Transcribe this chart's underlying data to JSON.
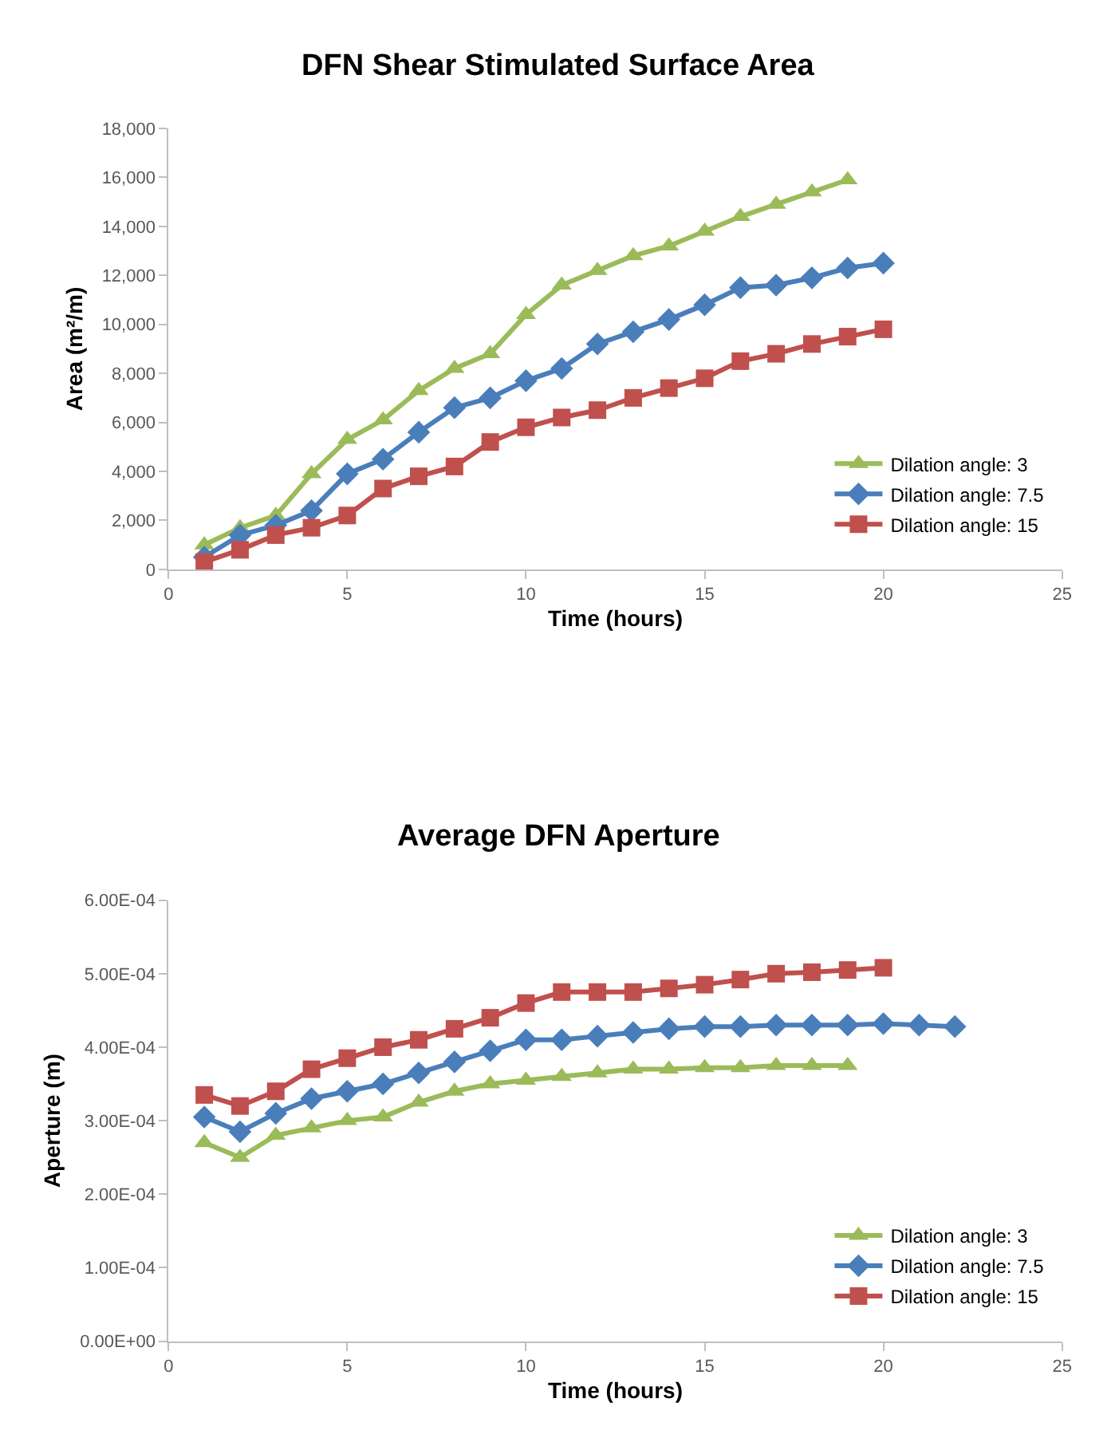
{
  "chart_data": [
    {
      "type": "line",
      "title": "DFN Shear Stimulated Surface Area",
      "xlabel": "Time (hours)",
      "ylabel": "Area (m²/m)",
      "xlim": [
        0,
        25
      ],
      "xticks": [
        0,
        5,
        10,
        15,
        20,
        25
      ],
      "ylim": [
        0,
        18000
      ],
      "yticks": [
        {
          "value": 0,
          "label": "0"
        },
        {
          "value": 2000,
          "label": "2,000"
        },
        {
          "value": 4000,
          "label": "4,000"
        },
        {
          "value": 6000,
          "label": "6,000"
        },
        {
          "value": 8000,
          "label": "8,000"
        },
        {
          "value": 10000,
          "label": "10,000"
        },
        {
          "value": 12000,
          "label": "12,000"
        },
        {
          "value": 14000,
          "label": "14,000"
        },
        {
          "value": 16000,
          "label": "16,000"
        },
        {
          "value": 18000,
          "label": "18,000"
        }
      ],
      "legend": "bottom right",
      "line_style": "solid",
      "series": [
        {
          "name": "Dilation angle: 3",
          "color": "#9bbb59",
          "marker": "triangle",
          "x": [
            1,
            2,
            3,
            4,
            5,
            6,
            7,
            8,
            9,
            10,
            11,
            12,
            13,
            14,
            15,
            16,
            17,
            18,
            19
          ],
          "values": [
            1000,
            1700,
            2200,
            3900,
            5300,
            6100,
            7300,
            8200,
            8800,
            10400,
            11600,
            12200,
            12800,
            13200,
            13800,
            14400,
            14900,
            15400,
            15900
          ]
        },
        {
          "name": "Dilation angle: 7.5",
          "color": "#4a7ebb",
          "marker": "diamond",
          "x": [
            1,
            2,
            3,
            4,
            5,
            6,
            7,
            8,
            9,
            10,
            11,
            12,
            13,
            14,
            15,
            16,
            17,
            18,
            19,
            20
          ],
          "values": [
            500,
            1400,
            1800,
            2400,
            3900,
            4500,
            5600,
            6600,
            7000,
            7700,
            8200,
            9200,
            9700,
            10200,
            10800,
            11500,
            11600,
            11900,
            12300,
            12500
          ]
        },
        {
          "name": "Dilation angle: 15",
          "color": "#c0504d",
          "marker": "square",
          "x": [
            1,
            2,
            3,
            4,
            5,
            6,
            7,
            8,
            9,
            10,
            11,
            12,
            13,
            14,
            15,
            16,
            17,
            18,
            19,
            20
          ],
          "values": [
            300,
            800,
            1400,
            1700,
            2200,
            3300,
            3800,
            4200,
            5200,
            5800,
            6200,
            6500,
            7000,
            7400,
            7800,
            8500,
            8800,
            9200,
            9500,
            9800
          ]
        }
      ]
    },
    {
      "type": "line",
      "title": "Average DFN Aperture",
      "xlabel": "Time (hours)",
      "ylabel": "Aperture (m)",
      "xlim": [
        0,
        25
      ],
      "xticks": [
        0,
        5,
        10,
        15,
        20,
        25
      ],
      "ylim": [
        0,
        0.0006
      ],
      "yticks": [
        {
          "value": 0,
          "label": "0.00E+00"
        },
        {
          "value": 0.0001,
          "label": "1.00E-04"
        },
        {
          "value": 0.0002,
          "label": "2.00E-04"
        },
        {
          "value": 0.0003,
          "label": "3.00E-04"
        },
        {
          "value": 0.0004,
          "label": "4.00E-04"
        },
        {
          "value": 0.0005,
          "label": "5.00E-04"
        },
        {
          "value": 0.0006,
          "label": "6.00E-04"
        }
      ],
      "legend": "bottom right",
      "line_style": "solid",
      "series": [
        {
          "name": "Dilation angle: 3",
          "color": "#9bbb59",
          "marker": "triangle",
          "x": [
            1,
            2,
            3,
            4,
            5,
            6,
            7,
            8,
            9,
            10,
            11,
            12,
            13,
            14,
            15,
            16,
            17,
            18,
            19
          ],
          "values": [
            0.00027,
            0.00025,
            0.00028,
            0.00029,
            0.0003,
            0.000305,
            0.000325,
            0.00034,
            0.00035,
            0.000355,
            0.00036,
            0.000365,
            0.00037,
            0.00037,
            0.000372,
            0.000372,
            0.000375,
            0.000375,
            0.000375
          ]
        },
        {
          "name": "Dilation angle: 7.5",
          "color": "#4a7ebb",
          "marker": "diamond",
          "x": [
            1,
            2,
            3,
            4,
            5,
            6,
            7,
            8,
            9,
            10,
            11,
            12,
            13,
            14,
            15,
            16,
            17,
            18,
            19,
            20,
            21,
            22
          ],
          "values": [
            0.000305,
            0.000285,
            0.00031,
            0.00033,
            0.00034,
            0.00035,
            0.000365,
            0.00038,
            0.000395,
            0.00041,
            0.00041,
            0.000415,
            0.00042,
            0.000425,
            0.000428,
            0.000428,
            0.00043,
            0.00043,
            0.00043,
            0.000432,
            0.00043,
            0.000428
          ]
        },
        {
          "name": "Dilation angle: 15",
          "color": "#c0504d",
          "marker": "square",
          "x": [
            1,
            2,
            3,
            4,
            5,
            6,
            7,
            8,
            9,
            10,
            11,
            12,
            13,
            14,
            15,
            16,
            17,
            18,
            19,
            20
          ],
          "values": [
            0.000335,
            0.00032,
            0.00034,
            0.00037,
            0.000385,
            0.0004,
            0.00041,
            0.000425,
            0.00044,
            0.00046,
            0.000475,
            0.000475,
            0.000475,
            0.00048,
            0.000485,
            0.000492,
            0.0005,
            0.000502,
            0.000505,
            0.000508
          ]
        }
      ]
    }
  ]
}
